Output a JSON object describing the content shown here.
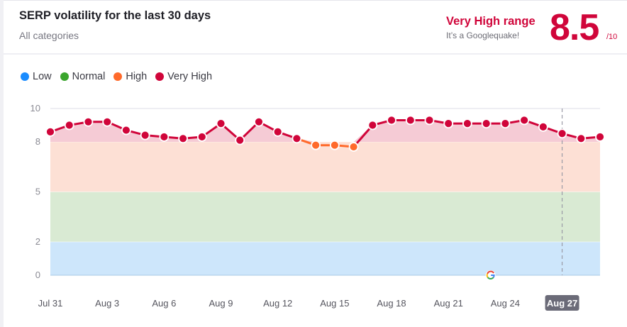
{
  "header": {
    "title": "SERP volatility for the last 30 days",
    "subtitle": "All categories",
    "range_label": "Very High range",
    "range_sub": "It’s a Googlequake!",
    "score": "8.5",
    "score_max": "/10"
  },
  "legend": [
    {
      "label": "Low",
      "color": "#1a8cff"
    },
    {
      "label": "Normal",
      "color": "#3aa52d"
    },
    {
      "label": "High",
      "color": "#ff6a2b"
    },
    {
      "label": "Very High",
      "color": "#d0053a"
    }
  ],
  "colors": {
    "very_high": "#d0053a",
    "high": "#ff6a2b",
    "band_very_high": "#f5cbd5",
    "band_high": "#fde0d5",
    "band_normal": "#d9ead3",
    "band_low": "#cde6fb",
    "highlight_label_bg": "#6b6b78"
  },
  "chart_data": {
    "type": "line",
    "title": "SERP volatility for the last 30 days",
    "xlabel": "",
    "ylabel": "",
    "ylim": [
      0,
      10
    ],
    "y_ticks": [
      0,
      2,
      5,
      8,
      10
    ],
    "x_tick_labels": [
      "Jul 31",
      "Aug 3",
      "Aug 6",
      "Aug 9",
      "Aug 12",
      "Aug 15",
      "Aug 18",
      "Aug 21",
      "Aug 24",
      "Aug 27"
    ],
    "highlighted_date": "Aug 27",
    "bands": [
      {
        "name": "Low",
        "from": 0,
        "to": 2
      },
      {
        "name": "Normal",
        "from": 2,
        "to": 5
      },
      {
        "name": "High",
        "from": 5,
        "to": 8
      },
      {
        "name": "Very High",
        "from": 8,
        "to": 10
      }
    ],
    "categories": [
      "Jul 31",
      "Aug 1",
      "Aug 2",
      "Aug 3",
      "Aug 4",
      "Aug 5",
      "Aug 6",
      "Aug 7",
      "Aug 8",
      "Aug 9",
      "Aug 10",
      "Aug 11",
      "Aug 12",
      "Aug 13",
      "Aug 14",
      "Aug 15",
      "Aug 16",
      "Aug 17",
      "Aug 18",
      "Aug 19",
      "Aug 20",
      "Aug 21",
      "Aug 22",
      "Aug 23",
      "Aug 24",
      "Aug 25",
      "Aug 26",
      "Aug 27",
      "Aug 28",
      "Aug 29"
    ],
    "series": [
      {
        "name": "Volatility",
        "values": [
          8.6,
          9.0,
          9.2,
          9.2,
          8.7,
          8.4,
          8.3,
          8.2,
          8.3,
          9.1,
          8.1,
          9.2,
          8.6,
          8.2,
          7.8,
          7.8,
          7.7,
          9.0,
          9.3,
          9.3,
          9.3,
          9.1,
          9.1,
          9.1,
          9.1,
          9.3,
          8.9,
          8.5,
          8.2,
          8.3
        ]
      }
    ],
    "annotations": [
      {
        "type": "google-update-marker",
        "date": "Aug 23"
      }
    ],
    "grid": true,
    "legend_position": "top-left"
  }
}
